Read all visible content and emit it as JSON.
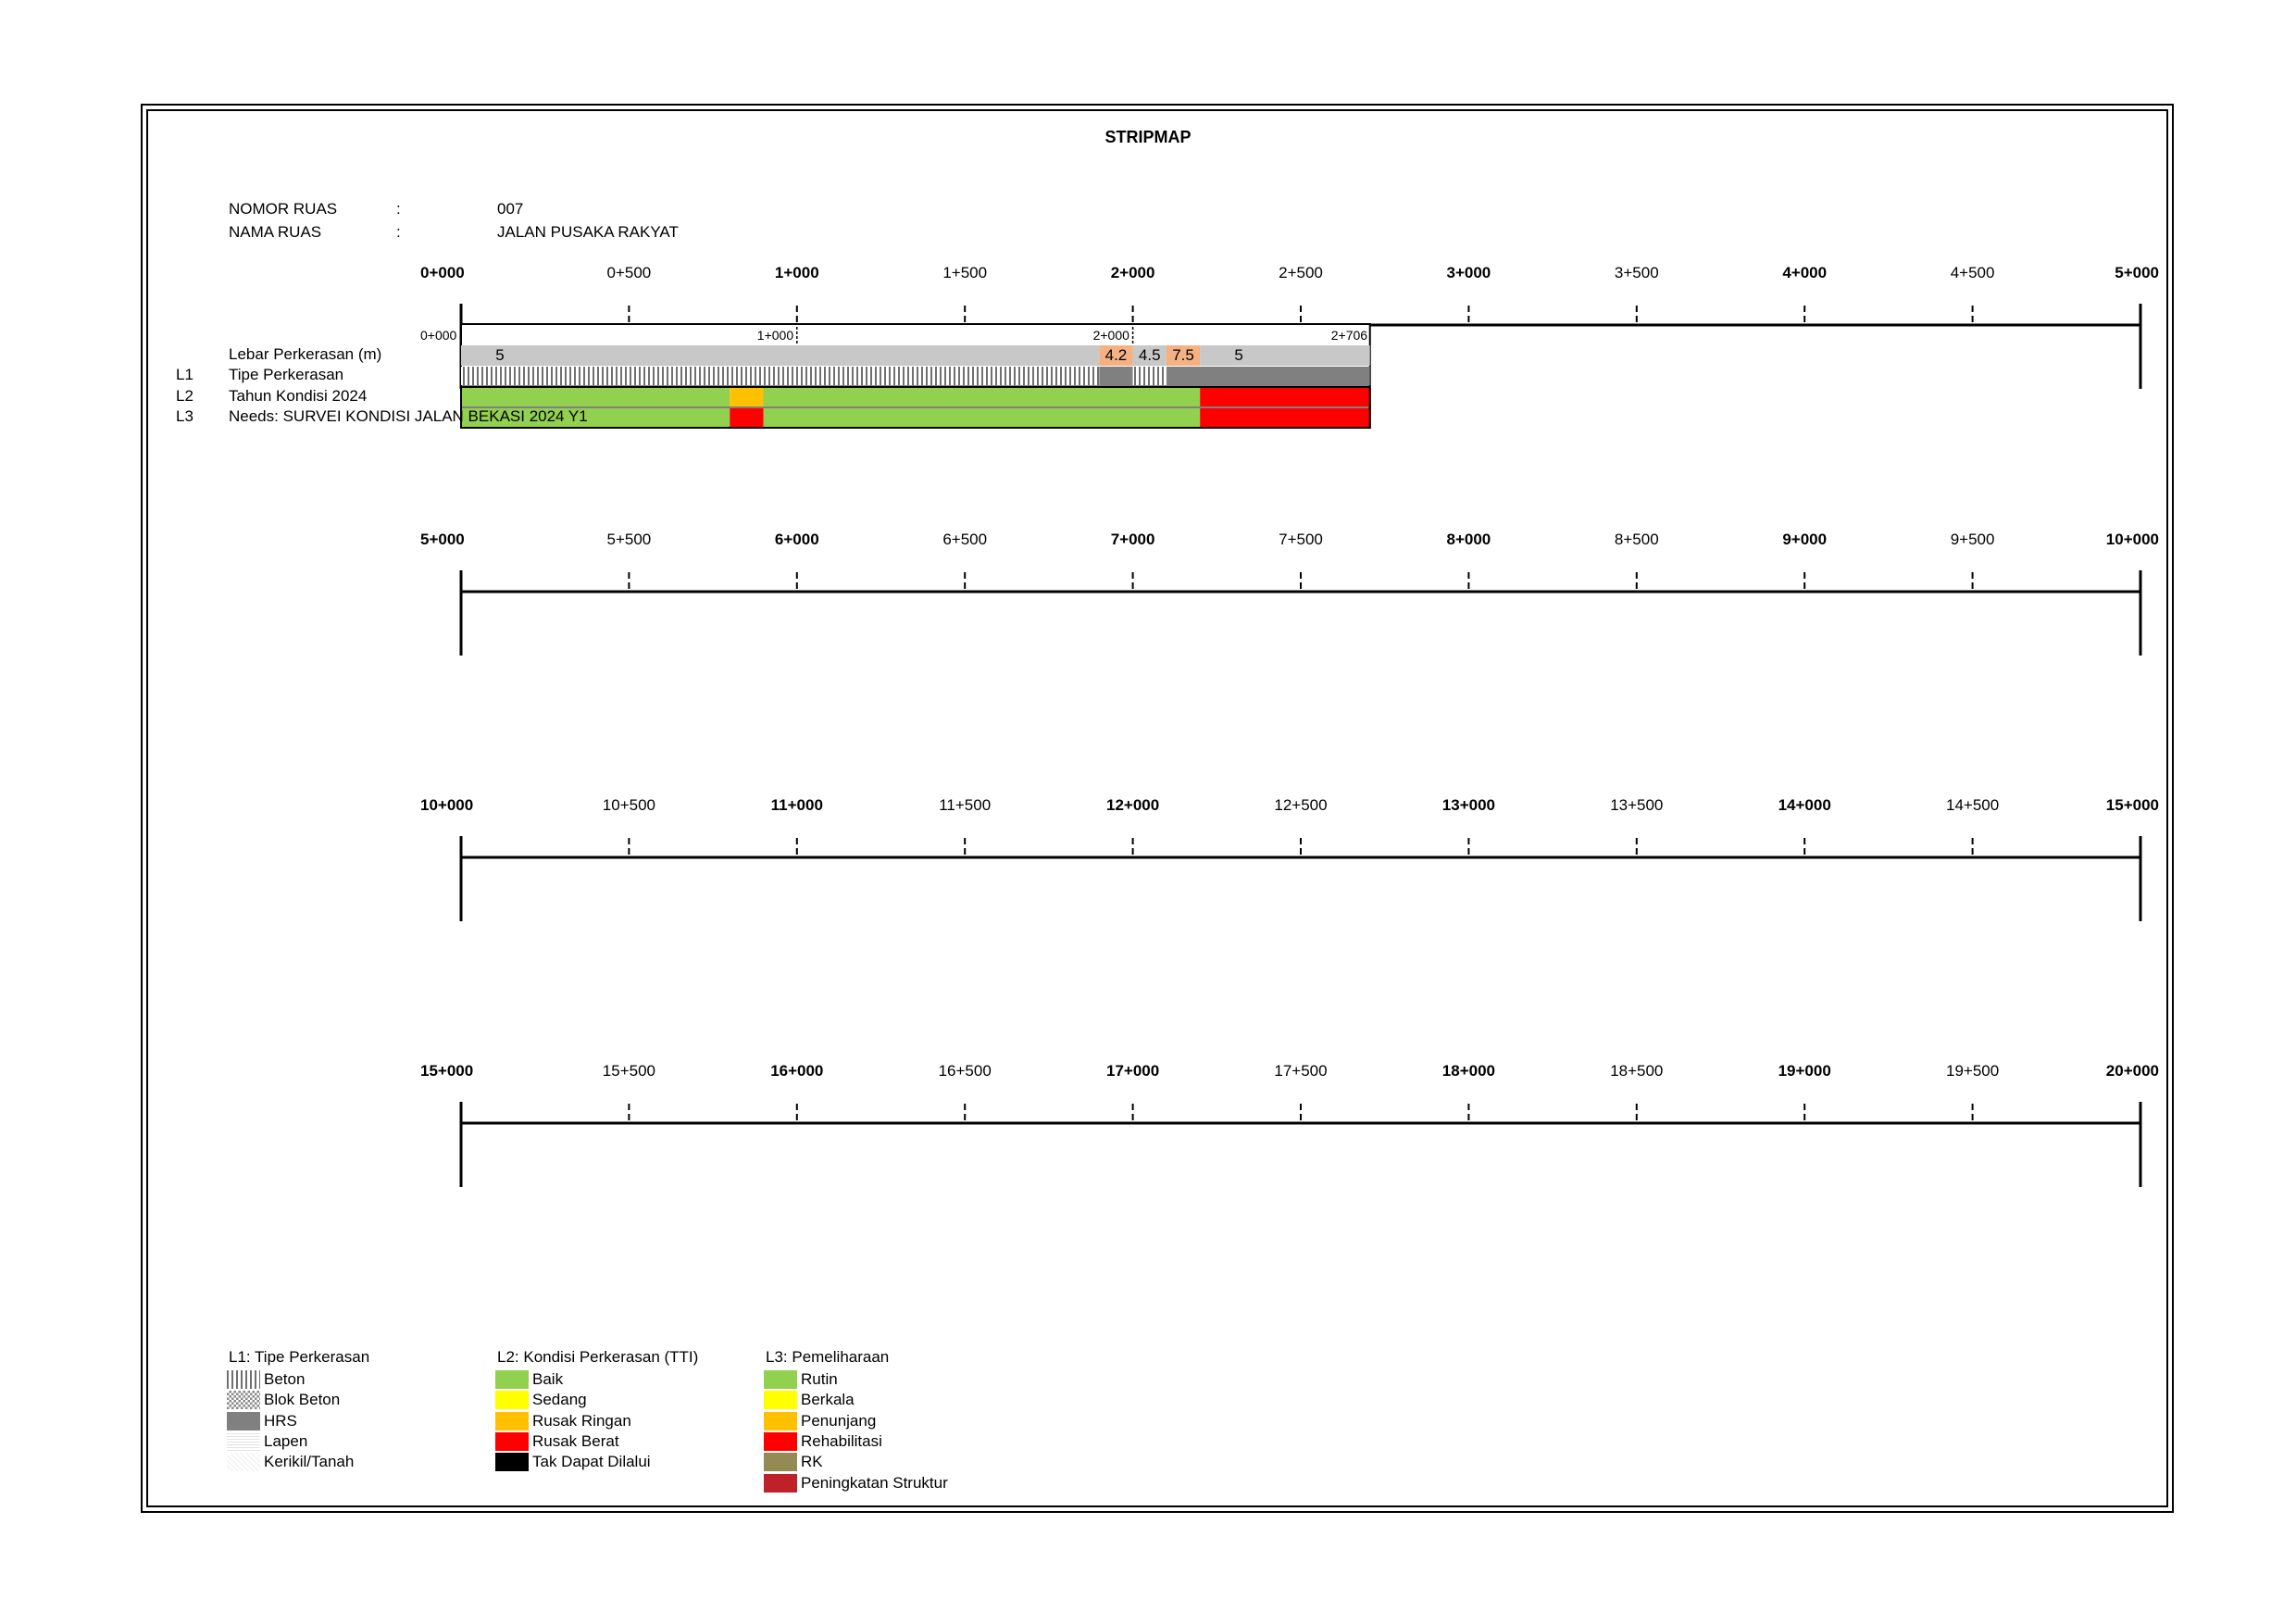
{
  "title": "STRIPMAP",
  "info": {
    "nomor_label": "NOMOR RUAS",
    "nomor_sep": ":",
    "nomor_value": "007",
    "nama_label": "NAMA RUAS",
    "nama_sep": ":",
    "nama_value": "JALAN PUSAKA RAKYAT"
  },
  "rows": [
    {
      "ticks": [
        "0+000",
        "0+500",
        "1+000",
        "1+500",
        "2+000",
        "2+500",
        "3+000",
        "3+500",
        "4+000",
        "4+500",
        "5+000"
      ]
    },
    {
      "ticks": [
        "5+000",
        "5+500",
        "6+000",
        "6+500",
        "7+000",
        "7+500",
        "8+000",
        "8+500",
        "9+000",
        "9+500",
        "10+000"
      ]
    },
    {
      "ticks": [
        "10+000",
        "10+500",
        "11+000",
        "11+500",
        "12+000",
        "12+500",
        "13+000",
        "13+500",
        "14+000",
        "14+500",
        "15+000"
      ]
    },
    {
      "ticks": [
        "15+000",
        "15+500",
        "16+000",
        "16+500",
        "17+000",
        "17+500",
        "18+000",
        "18+500",
        "19+000",
        "19+500",
        "20+000"
      ]
    }
  ],
  "strip": {
    "sub_ticks": [
      {
        "km": 0,
        "label": "0+000"
      },
      {
        "km": 1.0,
        "label": "1+000"
      },
      {
        "km": 2.0,
        "label": "2+000"
      },
      {
        "km": 2.706,
        "label": "2+706"
      }
    ],
    "row_labels": {
      "lebar": "Lebar Perkerasan (m)",
      "l1_code": "L1",
      "l1": "Tipe Perkerasan",
      "l2_code": "L2",
      "l2": "Tahun Kondisi 2024",
      "l3_code": "L3",
      "l3": "Needs: SURVEI KONDISI JALAN BEKASI 2024 Y1"
    },
    "lebar": [
      {
        "start": 0,
        "end": 1.9,
        "value": "5",
        "color": "#c8c8c8"
      },
      {
        "start": 1.9,
        "end": 2.0,
        "value": "4.2",
        "color": "#f4b183"
      },
      {
        "start": 2.0,
        "end": 2.1,
        "value": "4.5",
        "color": "#c8c8c8"
      },
      {
        "start": 2.1,
        "end": 2.2,
        "value": "7.5",
        "color": "#f4b183"
      },
      {
        "start": 2.2,
        "end": 2.706,
        "value": "5",
        "color": "#c8c8c8"
      }
    ],
    "tipe": [
      {
        "start": 0,
        "end": 1.9,
        "type": "Beton"
      },
      {
        "start": 1.9,
        "end": 2.0,
        "type": "HRS"
      },
      {
        "start": 2.0,
        "end": 2.1,
        "type": "Beton"
      },
      {
        "start": 2.1,
        "end": 2.706,
        "type": "HRS"
      }
    ],
    "kondisi": [
      {
        "start": 0,
        "end": 0.8,
        "color": "#92d050"
      },
      {
        "start": 0.8,
        "end": 0.9,
        "color": "#ffc000"
      },
      {
        "start": 0.9,
        "end": 2.2,
        "color": "#92d050"
      },
      {
        "start": 2.2,
        "end": 2.706,
        "color": "#ff0000"
      }
    ],
    "needs": [
      {
        "start": 0,
        "end": 0.8,
        "color": "#92d050"
      },
      {
        "start": 0.8,
        "end": 0.9,
        "color": "#ff0000"
      },
      {
        "start": 0.9,
        "end": 2.2,
        "color": "#92d050"
      },
      {
        "start": 2.2,
        "end": 2.706,
        "color": "#ff0000"
      }
    ]
  },
  "legend": {
    "l1_title": "L1: Tipe Perkerasan",
    "l1": [
      {
        "label": "Beton",
        "pattern": "beton"
      },
      {
        "label": "Blok Beton",
        "pattern": "blok"
      },
      {
        "label": "HRS",
        "pattern": "hrs"
      },
      {
        "label": "Lapen",
        "pattern": "lapen"
      },
      {
        "label": "Kerikil/Tanah",
        "pattern": "kerikil"
      }
    ],
    "l2_title": "L2: Kondisi Perkerasan (TTI)",
    "l2": [
      {
        "label": "Baik",
        "color": "#92d050"
      },
      {
        "label": "Sedang",
        "color": "#ffff00"
      },
      {
        "label": "Rusak Ringan",
        "color": "#ffc000"
      },
      {
        "label": "Rusak Berat",
        "color": "#ff0000"
      },
      {
        "label": "Tak Dapat Dilalui",
        "color": "#000000"
      }
    ],
    "l3_title": "L3: Pemeliharaan",
    "l3": [
      {
        "label": "Rutin",
        "color": "#92d050"
      },
      {
        "label": "Berkala",
        "color": "#ffff00"
      },
      {
        "label": "Penunjang",
        "color": "#ffc000"
      },
      {
        "label": "Rehabilitasi",
        "color": "#ff0000"
      },
      {
        "label": "RK",
        "color": "#948a54"
      },
      {
        "label": "Peningkatan Struktur",
        "color": "#c0202a"
      }
    ]
  }
}
